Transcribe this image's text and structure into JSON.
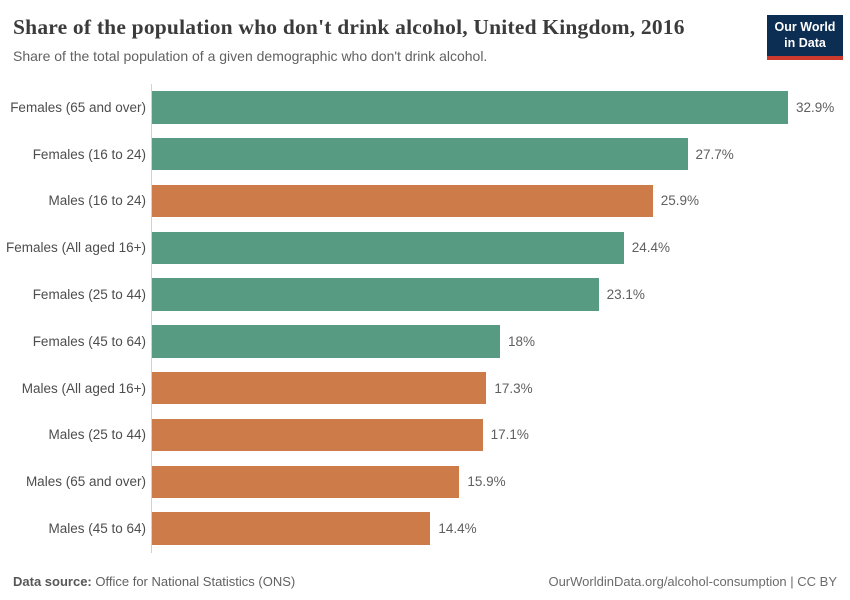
{
  "header": {
    "title": "Share of the population who don't drink alcohol, United Kingdom, 2016",
    "subtitle": "Share of the total population of a given demographic who don't drink alcohol.",
    "logo": {
      "line1": "Our World",
      "line2": "in Data",
      "bg_color": "#0d2e53",
      "accent_color": "#cc392d"
    }
  },
  "chart_data": {
    "type": "bar",
    "orientation": "horizontal",
    "title": "Share of the population who don't drink alcohol, United Kingdom, 2016",
    "xlabel": "",
    "ylabel": "",
    "unit": "%",
    "xlim": [
      0,
      32.9
    ],
    "grid": false,
    "legend": "none",
    "categories": [
      "Females (65 and over)",
      "Females (16 to 24)",
      "Males (16 to 24)",
      "Females (All aged 16+)",
      "Females (25 to 44)",
      "Females (45 to 64)",
      "Males (All aged 16+)",
      "Males (25 to 44)",
      "Males (65 and over)",
      "Males (45 to 64)"
    ],
    "values": [
      32.9,
      27.7,
      25.9,
      24.4,
      23.1,
      18,
      17.3,
      17.1,
      15.9,
      14.4
    ],
    "value_labels": [
      "32.9%",
      "27.7%",
      "25.9%",
      "24.4%",
      "23.1%",
      "18%",
      "17.3%",
      "17.1%",
      "15.9%",
      "14.4%"
    ],
    "groups": [
      "female",
      "female",
      "male",
      "female",
      "female",
      "female",
      "male",
      "male",
      "male",
      "male"
    ],
    "colors": {
      "female": "#579b82",
      "male": "#cd7b48"
    }
  },
  "footer": {
    "datasource_label": "Data source:",
    "datasource_value": "Office for National Statistics (ONS)",
    "credit": "OurWorldinData.org/alcohol-consumption | CC BY"
  }
}
